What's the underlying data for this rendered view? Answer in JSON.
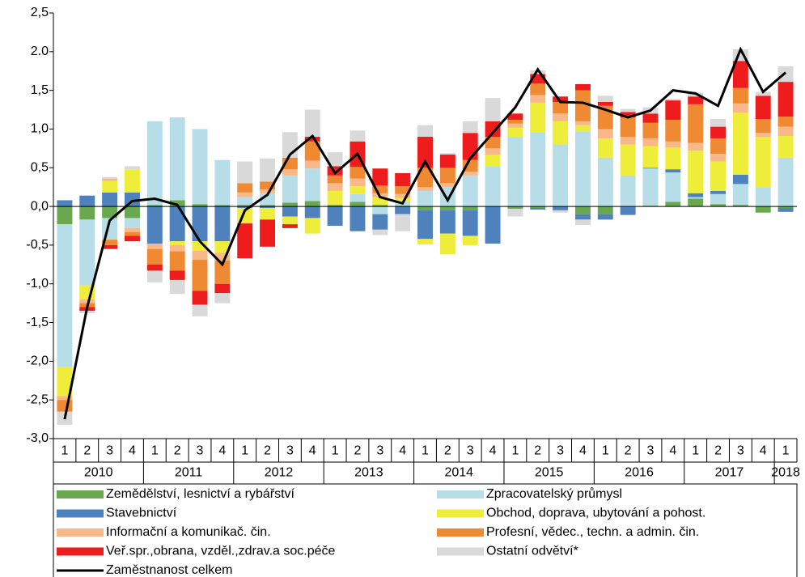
{
  "chart_data": {
    "type": "bar",
    "stacked": true,
    "categories": [
      "1",
      "2",
      "3",
      "4",
      "1",
      "2",
      "3",
      "4",
      "1",
      "2",
      "3",
      "4",
      "1",
      "2",
      "3",
      "4",
      "1",
      "2",
      "3",
      "4",
      "1",
      "2",
      "3",
      "4",
      "1",
      "2",
      "3",
      "4",
      "1",
      "2",
      "3",
      "4",
      "1"
    ],
    "years": [
      "2010",
      "2011",
      "2012",
      "2013",
      "2014",
      "2015",
      "2016",
      "2017",
      "2018"
    ],
    "ylim": [
      -3.0,
      2.5
    ],
    "yticks": [
      {
        "value": 2.5,
        "label": "2,5"
      },
      {
        "value": 2.0,
        "label": "2.0"
      },
      {
        "value": 1.5,
        "label": "1,5"
      },
      {
        "value": 1.0,
        "label": "1,0"
      },
      {
        "value": 0.5,
        "label": "0,5"
      },
      {
        "value": 0,
        "label": "0,0"
      },
      {
        "value": -0.5,
        "label": "-0,5"
      },
      {
        "value": -1.0,
        "label": "-1,0"
      },
      {
        "value": -1.5,
        "label": "-1,5"
      },
      {
        "value": -2.0,
        "label": "-2,0"
      },
      {
        "value": -2.5,
        "label": "-2,5"
      },
      {
        "value": -3.0,
        "label": "-3,0"
      }
    ],
    "series": [
      {
        "name": "Zemědělství, lesnictví a rybářství",
        "color": "#6aa84f",
        "values": [
          -0.23,
          -0.17,
          -0.15,
          -0.15,
          0.02,
          0.08,
          0.03,
          0.02,
          0.02,
          0.02,
          0.05,
          0.07,
          0.02,
          0.06,
          0.02,
          0.01,
          -0.05,
          -0.05,
          -0.05,
          0,
          -0.03,
          -0.02,
          0,
          -0.1,
          -0.1,
          -0.01,
          0.01,
          0.06,
          0.1,
          0.03,
          0.02,
          -0.08,
          -0.02
        ]
      },
      {
        "name": "Zpracovatelský průmysl",
        "color": "#b7dde8",
        "values": [
          -1.84,
          -0.85,
          -0.28,
          -0.13,
          1.08,
          1.07,
          0.97,
          0.58,
          0.1,
          0.15,
          0.35,
          0.42,
          0.0,
          0.1,
          -0.1,
          0.05,
          0.2,
          0.25,
          0.4,
          0.52,
          0.9,
          0.96,
          0.8,
          0.97,
          0.63,
          0.4,
          0.48,
          0.38,
          0.02,
          0.13,
          0.27,
          0.25,
          0.63
        ]
      },
      {
        "name": "Stavebnictví",
        "color": "#4f81bd",
        "values": [
          0.08,
          0.14,
          0.18,
          0.18,
          -0.48,
          -0.45,
          -0.45,
          -0.45,
          -0.02,
          -0.02,
          -0.13,
          -0.15,
          -0.25,
          -0.32,
          -0.2,
          -0.1,
          -0.37,
          -0.3,
          -0.33,
          -0.48,
          0,
          -0.02,
          -0.05,
          -0.07,
          -0.07,
          -0.1,
          0.01,
          0.04,
          0.05,
          0.04,
          0.12,
          0,
          -0.05
        ]
      },
      {
        "name": "Obchod, doprava, ubytování a pohost.",
        "color": "#eded3a",
        "values": [
          -0.38,
          -0.18,
          0.15,
          0.3,
          0,
          -0.05,
          -0.12,
          -0.15,
          -0.2,
          -0.15,
          -0.1,
          -0.2,
          0.18,
          0.1,
          0.1,
          0.05,
          -0.07,
          -0.27,
          -0.12,
          0.15,
          0.12,
          0.38,
          0.3,
          0.08,
          0.25,
          0.4,
          0.28,
          0.28,
          0.55,
          0.38,
          0.8,
          0.65,
          0.28
        ]
      },
      {
        "name": "Informační a komunikač. čin.",
        "color": "#f9b889",
        "values": [
          -0.05,
          -0.05,
          0.03,
          -0.05,
          -0.07,
          -0.08,
          -0.12,
          -0.1,
          0.06,
          0.05,
          0.08,
          0.1,
          0.1,
          0.1,
          0.05,
          0.05,
          0.05,
          0.05,
          0.05,
          0.08,
          0.05,
          0.1,
          0.1,
          0.05,
          0.12,
          0.1,
          0.1,
          0.08,
          0.1,
          0.1,
          0.12,
          0.05,
          0.12
        ]
      },
      {
        "name": "Profesní, vědec., techn. a admin. čin.",
        "color": "#ef8a33",
        "values": [
          -0.15,
          -0.05,
          -0.07,
          -0.05,
          -0.2,
          -0.25,
          -0.4,
          -0.3,
          0.12,
          0.1,
          0.15,
          0.25,
          0.1,
          0.15,
          0.1,
          0.1,
          0.25,
          0.2,
          0.15,
          0.15,
          0.05,
          0.15,
          0.15,
          0.4,
          0.3,
          0.25,
          0.2,
          0.28,
          0.5,
          0.2,
          0.2,
          0.18,
          0.13
        ]
      },
      {
        "name": "Veř.spr.,obrana, vzděl.,zdrav.a soc.péče",
        "color": "#ee1c1c",
        "values": [
          0,
          -0.05,
          -0.05,
          -0.07,
          -0.08,
          -0.12,
          -0.18,
          -0.12,
          -0.45,
          -0.35,
          -0.05,
          0.06,
          0.12,
          0.33,
          0.22,
          0.17,
          0.4,
          0.17,
          0.35,
          0.2,
          0.08,
          0.12,
          0.07,
          0.08,
          0.05,
          0.07,
          0.12,
          0.25,
          0.1,
          0.15,
          0.35,
          0.3,
          0.45
        ]
      },
      {
        "name": "Ostatní odvětví*",
        "color": "#d9d9d9",
        "values": [
          -0.17,
          -0.03,
          0.02,
          0.04,
          -0.15,
          -0.18,
          -0.15,
          -0.13,
          0.28,
          0.3,
          0.33,
          0.35,
          0.18,
          0.14,
          -0.07,
          -0.22,
          0.15,
          0.02,
          0.15,
          0.3,
          -0.1,
          0.05,
          -0.03,
          -0.07,
          0.08,
          0.04,
          0.08,
          0.02,
          0.05,
          0.1,
          0.15,
          0.05,
          0.2
        ]
      }
    ],
    "line": {
      "name": "Zaměstnanost celkem",
      "color": "#000000",
      "values": [
        -2.75,
        -1.3,
        -0.18,
        0.07,
        0.1,
        0.02,
        -0.45,
        -0.75,
        -0.05,
        0.15,
        0.67,
        0.91,
        0.43,
        0.68,
        0.12,
        0.04,
        0.58,
        0.08,
        0.62,
        0.95,
        1.28,
        1.77,
        1.35,
        1.34,
        1.25,
        1.15,
        1.24,
        1.5,
        1.46,
        1.3,
        2.03,
        1.48,
        1.73
      ]
    }
  }
}
